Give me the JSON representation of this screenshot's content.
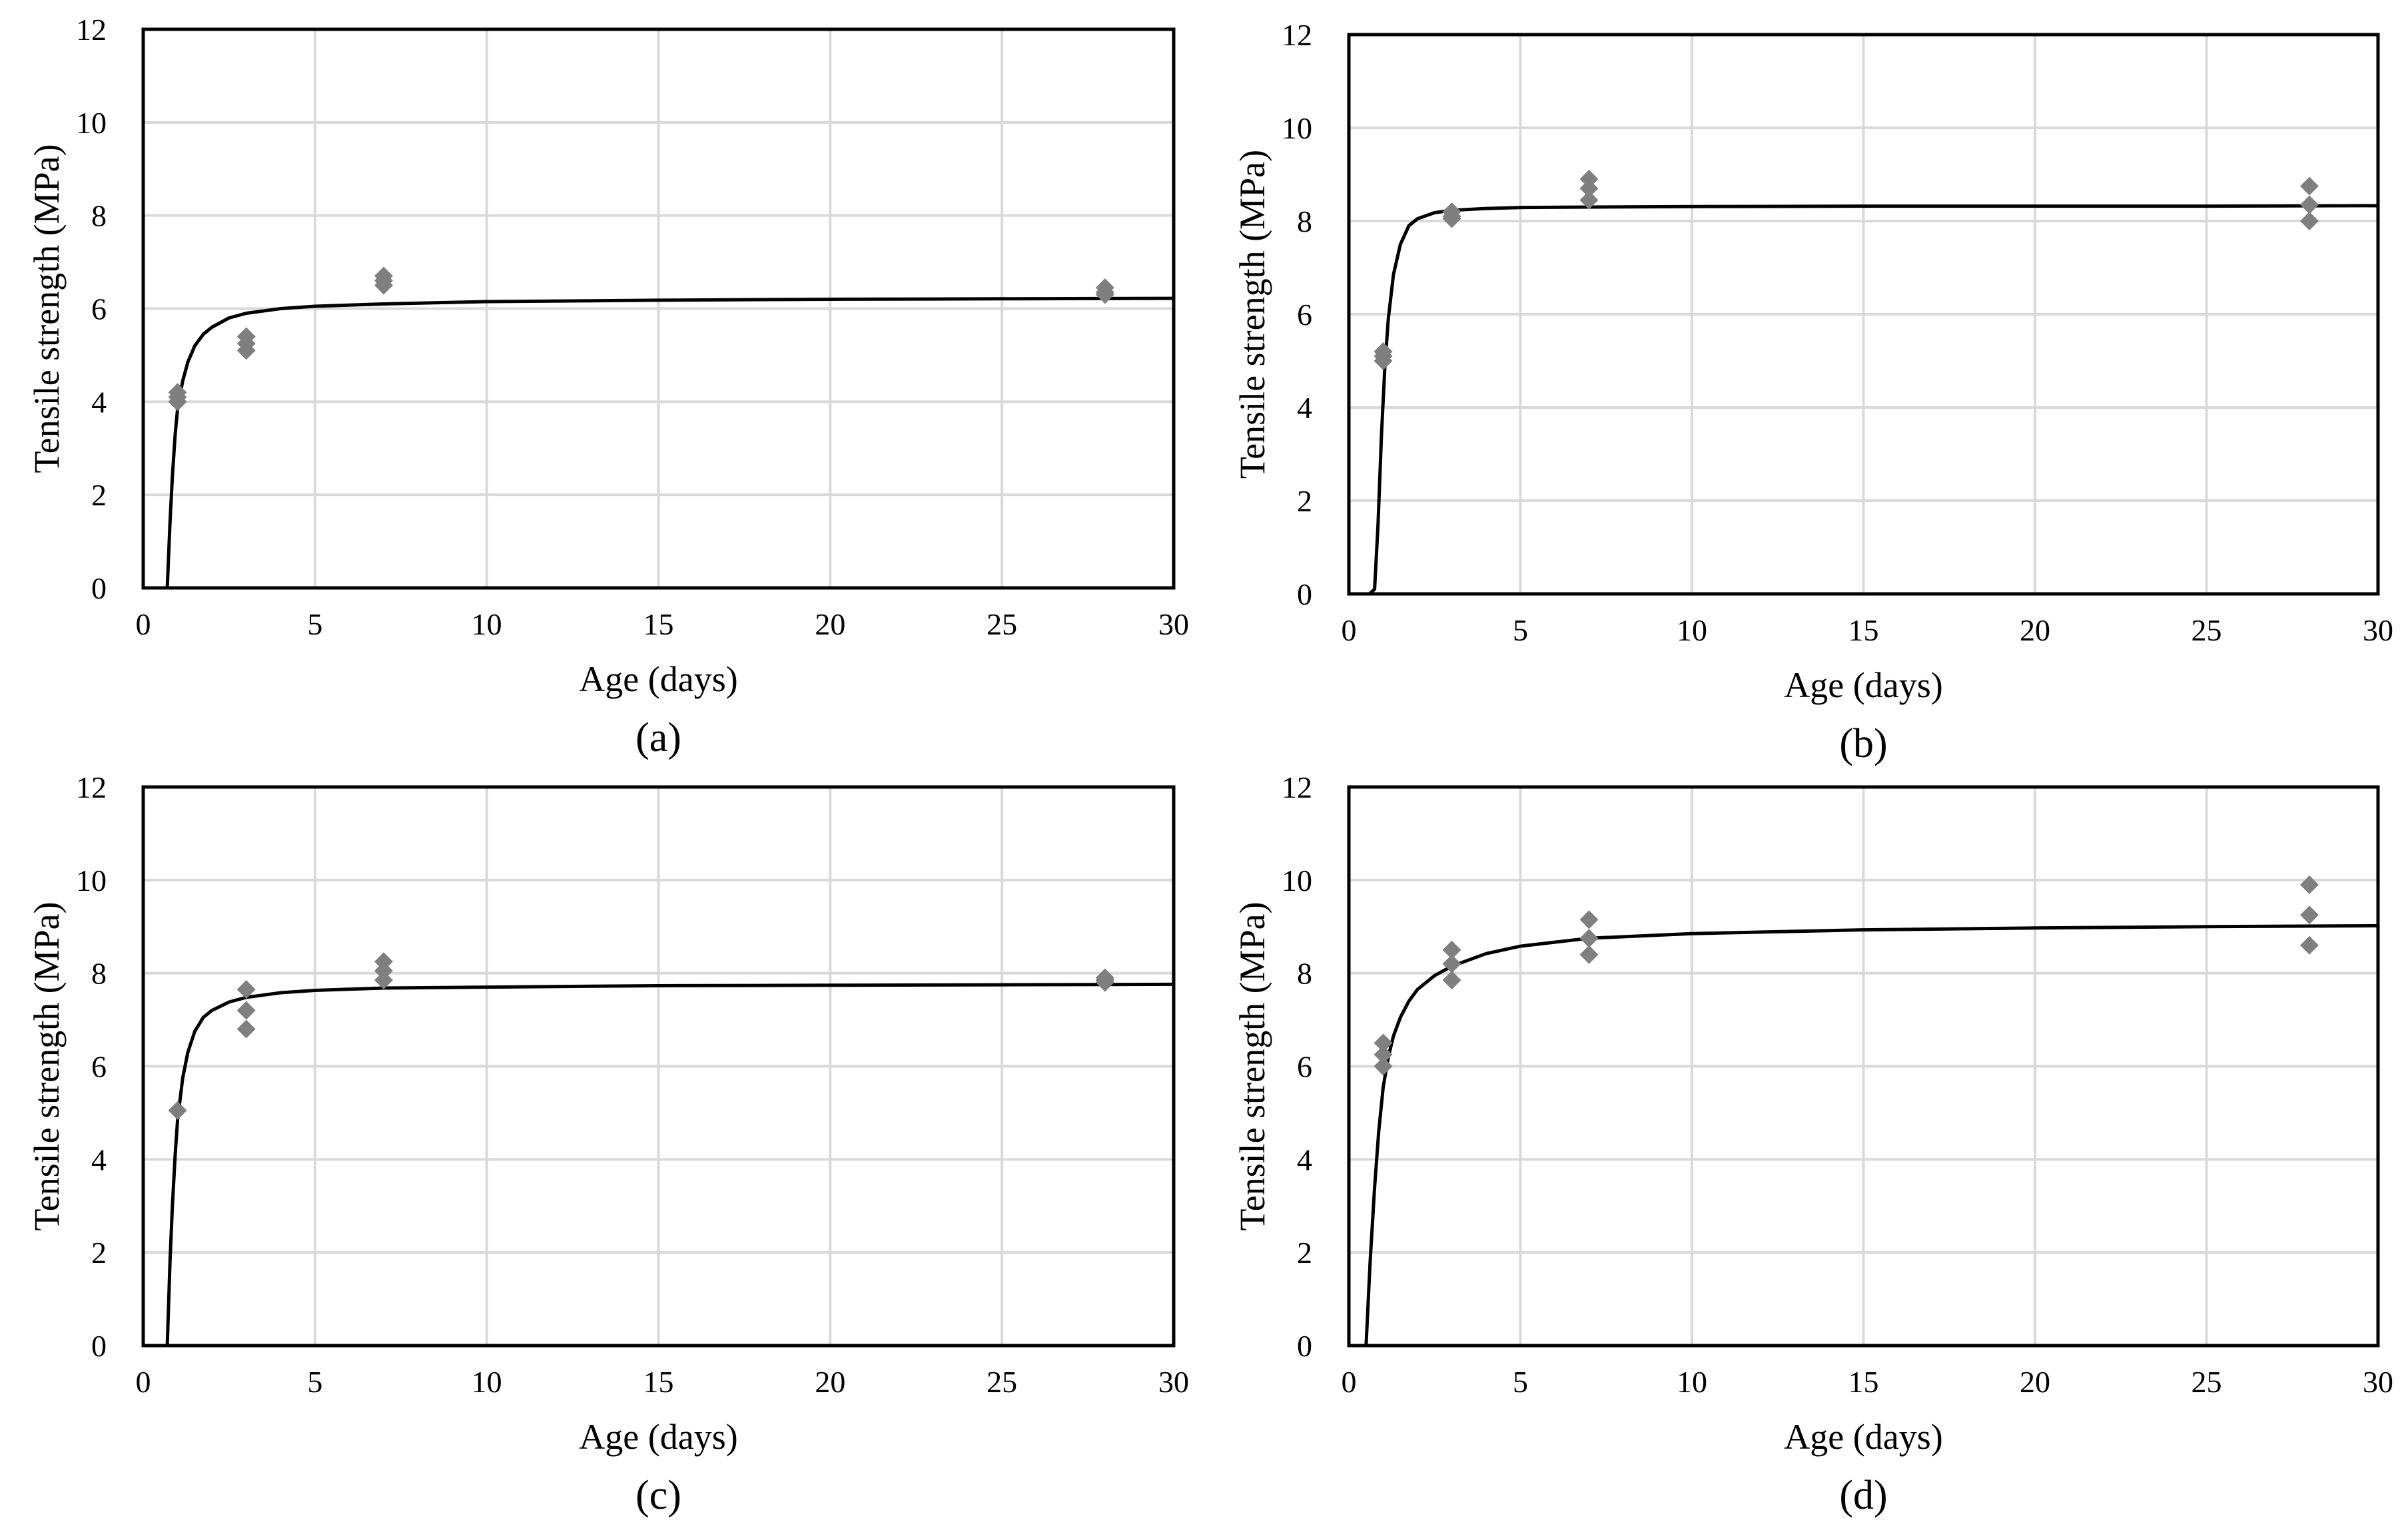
{
  "colors": {
    "background": "#ffffff",
    "fit_line": "#000000",
    "marker": "#7f7f7f",
    "gridline": "#d9d9d9",
    "frame": "#000000"
  },
  "chart_data": [
    {
      "type": "scatter",
      "panel_label": "(a)",
      "xlabel": "Age (days)",
      "ylabel": "Tensile strength (MPa)",
      "xlim": [
        0,
        30
      ],
      "ylim": [
        0,
        12
      ],
      "xticks": [
        0,
        5,
        10,
        15,
        20,
        25,
        30
      ],
      "yticks": [
        0,
        2,
        4,
        6,
        8,
        10,
        12
      ],
      "grid": "vertical and horizontal",
      "series": [
        {
          "marker": "diamond",
          "x": [
            1,
            1,
            1,
            3,
            3,
            3,
            7,
            7,
            7,
            28,
            28,
            28
          ],
          "y": [
            4.0,
            4.1,
            4.2,
            5.1,
            5.25,
            5.4,
            6.5,
            6.6,
            6.7,
            6.3,
            6.35,
            6.45
          ]
        },
        {
          "line": "fitted curve",
          "x": [
            0.7,
            0.78,
            0.85,
            0.93,
            1.0,
            1.15,
            1.3,
            1.5,
            1.75,
            2.0,
            2.5,
            3.0,
            4.0,
            5.0,
            7.0,
            10.0,
            15.0,
            20.0,
            25.0,
            30.0
          ],
          "y": [
            0.0,
            1.4,
            2.4,
            3.3,
            3.85,
            4.45,
            4.85,
            5.2,
            5.45,
            5.6,
            5.8,
            5.9,
            6.0,
            6.05,
            6.1,
            6.15,
            6.18,
            6.2,
            6.21,
            6.22
          ]
        }
      ]
    },
    {
      "type": "scatter",
      "panel_label": "(b)",
      "xlabel": "Age (days)",
      "ylabel": "Tensile strength (MPa)",
      "xlim": [
        0,
        30
      ],
      "ylim": [
        0,
        12
      ],
      "xticks": [
        0,
        5,
        10,
        15,
        20,
        25,
        30
      ],
      "yticks": [
        0,
        2,
        4,
        6,
        8,
        10,
        12
      ],
      "grid": "vertical and horizontal",
      "series": [
        {
          "marker": "diamond",
          "x": [
            1,
            1,
            1,
            3,
            3,
            3,
            7,
            7,
            7,
            28,
            28,
            28
          ],
          "y": [
            5.0,
            5.1,
            5.2,
            8.05,
            8.1,
            8.2,
            8.45,
            8.7,
            8.9,
            8.0,
            8.35,
            8.75
          ]
        },
        {
          "line": "fitted curve",
          "x": [
            0.2,
            0.6,
            0.75,
            0.85,
            0.95,
            1.05,
            1.15,
            1.3,
            1.5,
            1.75,
            2.0,
            2.5,
            3.0,
            4.0,
            5.0,
            7.0,
            10.0,
            15.0,
            20.0,
            25.0,
            30.0
          ],
          "y": [
            0.0,
            0.0,
            0.1,
            1.5,
            3.4,
            4.9,
            5.9,
            6.85,
            7.5,
            7.9,
            8.05,
            8.18,
            8.23,
            8.27,
            8.29,
            8.3,
            8.31,
            8.32,
            8.32,
            8.32,
            8.33
          ]
        }
      ]
    },
    {
      "type": "scatter",
      "panel_label": "(c)",
      "xlabel": "Age (days)",
      "ylabel": "Tensile strength (MPa)",
      "xlim": [
        0,
        30
      ],
      "ylim": [
        0,
        12
      ],
      "xticks": [
        0,
        5,
        10,
        15,
        20,
        25,
        30
      ],
      "yticks": [
        0,
        2,
        4,
        6,
        8,
        10,
        12
      ],
      "grid": "vertical and horizontal",
      "series": [
        {
          "marker": "diamond",
          "x": [
            1,
            3,
            3,
            3,
            7,
            7,
            7,
            28,
            28,
            28
          ],
          "y": [
            5.05,
            6.8,
            7.2,
            7.65,
            7.85,
            8.05,
            8.25,
            7.8,
            7.85,
            7.9
          ]
        },
        {
          "line": "fitted curve",
          "x": [
            0.7,
            0.78,
            0.85,
            0.93,
            1.0,
            1.15,
            1.3,
            1.5,
            1.75,
            2.0,
            2.5,
            3.0,
            4.0,
            5.0,
            7.0,
            10.0,
            15.0,
            20.0,
            25.0,
            30.0
          ],
          "y": [
            0.0,
            1.8,
            3.0,
            4.1,
            4.85,
            5.75,
            6.3,
            6.75,
            7.05,
            7.2,
            7.38,
            7.48,
            7.58,
            7.63,
            7.68,
            7.7,
            7.73,
            7.74,
            7.75,
            7.76
          ]
        }
      ]
    },
    {
      "type": "scatter",
      "panel_label": "(d)",
      "xlabel": "Age (days)",
      "ylabel": "Tensile strength (MPa)",
      "xlim": [
        0,
        30
      ],
      "ylim": [
        0,
        12
      ],
      "xticks": [
        0,
        5,
        10,
        15,
        20,
        25,
        30
      ],
      "yticks": [
        0,
        2,
        4,
        6,
        8,
        10,
        12
      ],
      "grid": "vertical and horizontal",
      "series": [
        {
          "marker": "diamond",
          "x": [
            1,
            1,
            1,
            3,
            3,
            3,
            7,
            7,
            7,
            28,
            28,
            28
          ],
          "y": [
            6.0,
            6.25,
            6.5,
            7.85,
            8.2,
            8.5,
            8.4,
            8.75,
            9.15,
            8.6,
            9.25,
            9.9
          ]
        },
        {
          "line": "fitted curve",
          "x": [
            0.5,
            0.62,
            0.75,
            0.87,
            1.0,
            1.15,
            1.3,
            1.5,
            1.75,
            2.0,
            2.5,
            3.0,
            4.0,
            5.0,
            7.0,
            10.0,
            15.0,
            20.0,
            25.0,
            30.0
          ],
          "y": [
            0.0,
            1.8,
            3.4,
            4.6,
            5.55,
            6.2,
            6.65,
            7.05,
            7.4,
            7.65,
            7.95,
            8.15,
            8.42,
            8.58,
            8.75,
            8.85,
            8.93,
            8.97,
            9.0,
            9.02
          ]
        }
      ]
    }
  ]
}
